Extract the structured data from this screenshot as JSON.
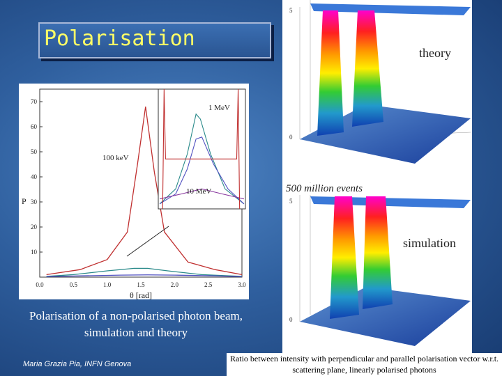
{
  "title": "Polarisation",
  "caption": "Polarisation of a non-polarised photon beam, simulation and theory",
  "author": "Maria Grazia Pia, INFN Genova",
  "footer": "Ratio between intensity with perpendicular and parallel polarisation vector w.r.t. scattering plane, linearly polarised photons",
  "labels": {
    "theory": "theory",
    "simulation": "simulation",
    "events": "500 million events"
  },
  "chart_data": {
    "type": "line",
    "xlabel": "θ [rad]",
    "ylabel": "P",
    "xlim": [
      0,
      3.0
    ],
    "ylim": [
      0,
      75
    ],
    "x_ticks": [
      "0.0",
      "0.5",
      "1.0",
      "1.5",
      "2.0",
      "2.5",
      "3.0"
    ],
    "y_ticks": [
      "10",
      "20",
      "30",
      "40",
      "50",
      "60",
      "70"
    ],
    "series": [
      {
        "name": "100 keV",
        "x": [
          0.1,
          0.6,
          1.0,
          1.3,
          1.45,
          1.57,
          1.7,
          1.85,
          2.2,
          2.6,
          3.0
        ],
        "y": [
          1,
          3,
          7,
          18,
          45,
          68,
          42,
          18,
          6,
          3,
          1
        ]
      },
      {
        "name": "1 MeV",
        "x": [
          0.1,
          0.5,
          1.0,
          1.4,
          1.6,
          1.9,
          2.4,
          3.0
        ],
        "y": [
          0.3,
          1,
          2.5,
          3.5,
          3.5,
          2.5,
          1,
          0.3
        ]
      },
      {
        "name": "10 MeV",
        "x": [
          0.1,
          0.6,
          1.2,
          1.6,
          2.0,
          2.6,
          3.0
        ],
        "y": [
          0.2,
          0.5,
          0.8,
          0.9,
          0.8,
          0.5,
          0.2
        ]
      }
    ],
    "inset_labels": [
      "1 MeV",
      "100 keV",
      "10 MeV"
    ]
  }
}
